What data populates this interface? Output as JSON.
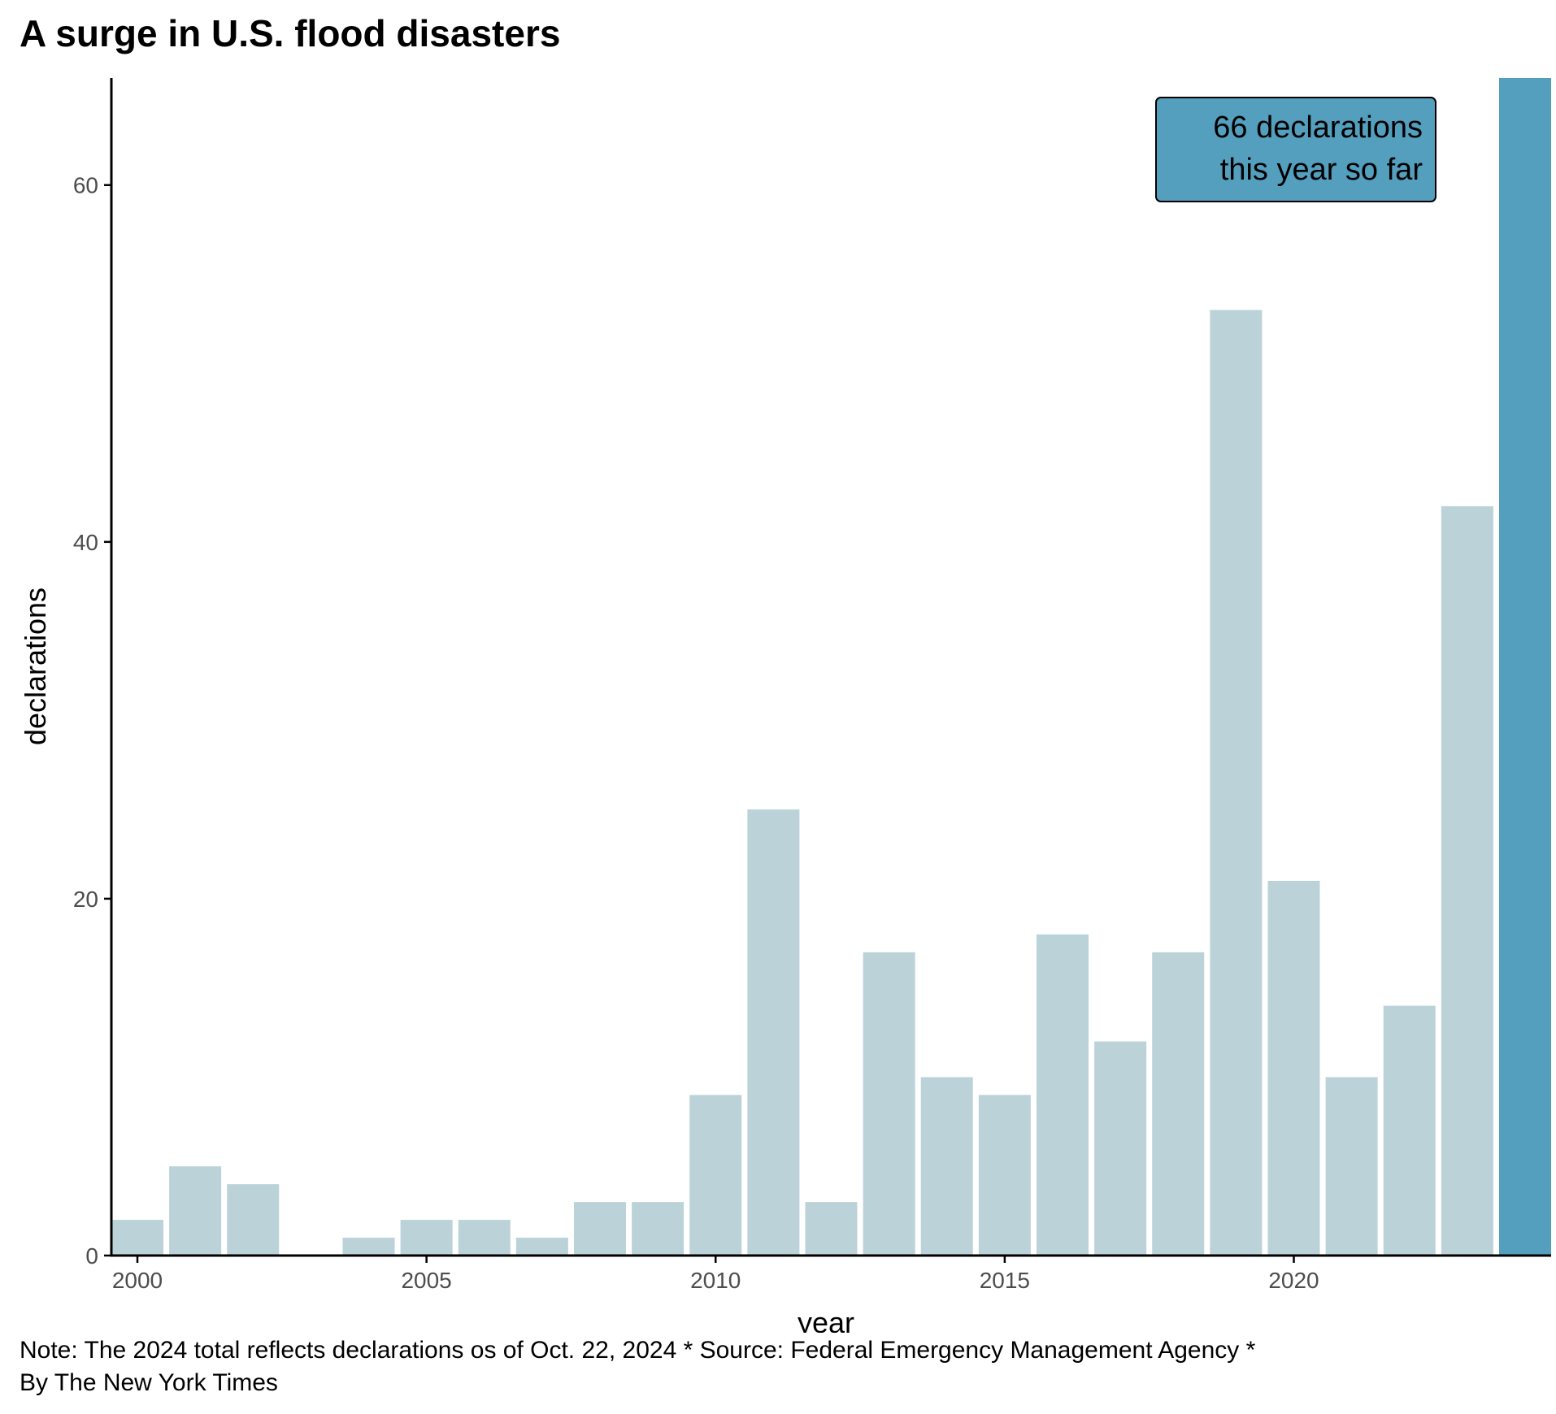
{
  "title": "A surge in U.S. flood disasters",
  "note_line1": "Note: The 2024 total reflects declarations os of Oct. 22, 2024 * Source: Federal Emergency Management Agency *",
  "note_line2": "By The New York Times",
  "colors": {
    "bar": "#bbd3d8",
    "highlight": "#549fbe",
    "axis": "#000000",
    "tick_label": "#4d4d4d"
  },
  "chart_data": {
    "type": "bar",
    "title": "A surge in U.S. flood disasters",
    "xlabel": "year",
    "ylabel": "declarations",
    "x": [
      2000,
      2001,
      2002,
      2003,
      2004,
      2005,
      2006,
      2007,
      2008,
      2009,
      2010,
      2011,
      2012,
      2013,
      2014,
      2015,
      2016,
      2017,
      2018,
      2019,
      2020,
      2021,
      2022,
      2023,
      2024
    ],
    "values": [
      2,
      5,
      4,
      0,
      1,
      2,
      2,
      1,
      3,
      3,
      9,
      25,
      3,
      17,
      10,
      9,
      18,
      12,
      17,
      53,
      21,
      10,
      14,
      42,
      66
    ],
    "highlight_year": 2024,
    "xlim": [
      1999.55,
      2024.45
    ],
    "ylim": [
      0,
      66
    ],
    "x_ticks": [
      2000,
      2005,
      2010,
      2015,
      2020
    ],
    "y_ticks": [
      0,
      20,
      40,
      60
    ],
    "grid": false,
    "annotation": {
      "lines": [
        "66 declarations",
        "this year so far"
      ],
      "year": 2024,
      "value": 66
    }
  }
}
